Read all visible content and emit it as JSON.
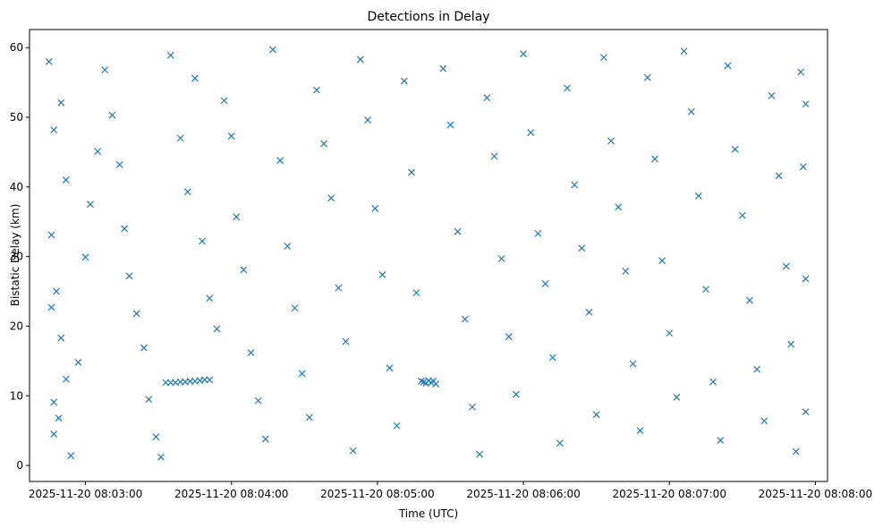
{
  "chart_data": {
    "type": "scatter",
    "title": "Detections in Delay",
    "xlabel": "Time (UTC)",
    "ylabel": "Bistatic Delay (km)",
    "x_ticks": [
      "2025-11-20 08:03:00",
      "2025-11-20 08:04:00",
      "2025-11-20 08:05:00",
      "2025-11-20 08:06:00",
      "2025-11-20 08:07:00",
      "2025-11-20 08:08:00"
    ],
    "y_ticks": [
      "0",
      "10",
      "20",
      "30",
      "40",
      "50",
      "60"
    ],
    "xlim": [
      "2025-11-20 08:02:37",
      "2025-11-20 08:08:05"
    ],
    "ylim": [
      -2.3,
      62.6
    ],
    "marker": "x",
    "grid": false,
    "series": [
      {
        "color": "#1f77b4",
        "points": [
          [
            "2025-11-20 08:02:45",
            58.0
          ],
          [
            "2025-11-20 08:02:47",
            48.2
          ],
          [
            "2025-11-20 08:02:50",
            52.1
          ],
          [
            "2025-11-20 08:02:52",
            41.0
          ],
          [
            "2025-11-20 08:02:46",
            33.1
          ],
          [
            "2025-11-20 08:02:48",
            25.0
          ],
          [
            "2025-11-20 08:02:46",
            22.7
          ],
          [
            "2025-11-20 08:02:50",
            18.3
          ],
          [
            "2025-11-20 08:02:52",
            12.4
          ],
          [
            "2025-11-20 08:02:47",
            9.1
          ],
          [
            "2025-11-20 08:02:49",
            6.8
          ],
          [
            "2025-11-20 08:02:47",
            4.5
          ],
          [
            "2025-11-20 08:02:54",
            1.4
          ],
          [
            "2025-11-20 08:02:57",
            14.8
          ],
          [
            "2025-11-20 08:03:00",
            29.9
          ],
          [
            "2025-11-20 08:03:02",
            37.5
          ],
          [
            "2025-11-20 08:03:05",
            45.1
          ],
          [
            "2025-11-20 08:03:08",
            56.8
          ],
          [
            "2025-11-20 08:03:11",
            50.3
          ],
          [
            "2025-11-20 08:03:14",
            43.2
          ],
          [
            "2025-11-20 08:03:16",
            34.0
          ],
          [
            "2025-11-20 08:03:18",
            27.2
          ],
          [
            "2025-11-20 08:03:21",
            21.8
          ],
          [
            "2025-11-20 08:03:24",
            16.9
          ],
          [
            "2025-11-20 08:03:26",
            9.5
          ],
          [
            "2025-11-20 08:03:29",
            4.1
          ],
          [
            "2025-11-20 08:03:31",
            1.2
          ],
          [
            "2025-11-20 08:03:33",
            11.9
          ],
          [
            "2025-11-20 08:03:35",
            11.9
          ],
          [
            "2025-11-20 08:03:37",
            11.9
          ],
          [
            "2025-11-20 08:03:39",
            12.0
          ],
          [
            "2025-11-20 08:03:41",
            12.0
          ],
          [
            "2025-11-20 08:03:43",
            12.1
          ],
          [
            "2025-11-20 08:03:45",
            12.1
          ],
          [
            "2025-11-20 08:03:47",
            12.2
          ],
          [
            "2025-11-20 08:03:49",
            12.3
          ],
          [
            "2025-11-20 08:03:51",
            12.3
          ],
          [
            "2025-11-20 08:03:35",
            58.9
          ],
          [
            "2025-11-20 08:03:39",
            47.0
          ],
          [
            "2025-11-20 08:03:42",
            39.3
          ],
          [
            "2025-11-20 08:03:45",
            55.6
          ],
          [
            "2025-11-20 08:03:48",
            32.2
          ],
          [
            "2025-11-20 08:03:51",
            24.0
          ],
          [
            "2025-11-20 08:03:54",
            19.6
          ],
          [
            "2025-11-20 08:03:57",
            52.4
          ],
          [
            "2025-11-20 08:04:00",
            47.3
          ],
          [
            "2025-11-20 08:04:02",
            35.7
          ],
          [
            "2025-11-20 08:04:05",
            28.1
          ],
          [
            "2025-11-20 08:04:08",
            16.2
          ],
          [
            "2025-11-20 08:04:11",
            9.3
          ],
          [
            "2025-11-20 08:04:14",
            3.8
          ],
          [
            "2025-11-20 08:04:17",
            59.7
          ],
          [
            "2025-11-20 08:04:20",
            43.8
          ],
          [
            "2025-11-20 08:04:23",
            31.5
          ],
          [
            "2025-11-20 08:04:26",
            22.6
          ],
          [
            "2025-11-20 08:04:29",
            13.2
          ],
          [
            "2025-11-20 08:04:32",
            6.9
          ],
          [
            "2025-11-20 08:04:35",
            53.9
          ],
          [
            "2025-11-20 08:04:38",
            46.2
          ],
          [
            "2025-11-20 08:04:41",
            38.4
          ],
          [
            "2025-11-20 08:04:44",
            25.5
          ],
          [
            "2025-11-20 08:04:47",
            17.8
          ],
          [
            "2025-11-20 08:04:50",
            2.1
          ],
          [
            "2025-11-20 08:04:53",
            58.3
          ],
          [
            "2025-11-20 08:04:56",
            49.6
          ],
          [
            "2025-11-20 08:04:59",
            36.9
          ],
          [
            "2025-11-20 08:05:02",
            27.4
          ],
          [
            "2025-11-20 08:05:05",
            14.0
          ],
          [
            "2025-11-20 08:05:08",
            5.7
          ],
          [
            "2025-11-20 08:05:11",
            55.2
          ],
          [
            "2025-11-20 08:05:14",
            42.1
          ],
          [
            "2025-11-20 08:05:16",
            24.8
          ],
          [
            "2025-11-20 08:05:18",
            12.1
          ],
          [
            "2025-11-20 08:05:19",
            12.0
          ],
          [
            "2025-11-20 08:05:20",
            11.8
          ],
          [
            "2025-11-20 08:05:21",
            12.2
          ],
          [
            "2025-11-20 08:05:22",
            11.9
          ],
          [
            "2025-11-20 08:05:23",
            12.1
          ],
          [
            "2025-11-20 08:05:24",
            11.7
          ],
          [
            "2025-11-20 08:05:27",
            57.0
          ],
          [
            "2025-11-20 08:05:30",
            48.9
          ],
          [
            "2025-11-20 08:05:33",
            33.6
          ],
          [
            "2025-11-20 08:05:36",
            21.0
          ],
          [
            "2025-11-20 08:05:39",
            8.4
          ],
          [
            "2025-11-20 08:05:42",
            1.6
          ],
          [
            "2025-11-20 08:05:45",
            52.8
          ],
          [
            "2025-11-20 08:05:48",
            44.4
          ],
          [
            "2025-11-20 08:05:51",
            29.7
          ],
          [
            "2025-11-20 08:05:54",
            18.5
          ],
          [
            "2025-11-20 08:05:57",
            10.2
          ],
          [
            "2025-11-20 08:06:00",
            59.1
          ],
          [
            "2025-11-20 08:06:03",
            47.8
          ],
          [
            "2025-11-20 08:06:06",
            33.3
          ],
          [
            "2025-11-20 08:06:09",
            26.1
          ],
          [
            "2025-11-20 08:06:12",
            15.5
          ],
          [
            "2025-11-20 08:06:15",
            3.2
          ],
          [
            "2025-11-20 08:06:18",
            54.2
          ],
          [
            "2025-11-20 08:06:21",
            40.3
          ],
          [
            "2025-11-20 08:06:24",
            31.2
          ],
          [
            "2025-11-20 08:06:27",
            22.0
          ],
          [
            "2025-11-20 08:06:30",
            7.3
          ],
          [
            "2025-11-20 08:06:33",
            58.6
          ],
          [
            "2025-11-20 08:06:36",
            46.6
          ],
          [
            "2025-11-20 08:06:39",
            37.1
          ],
          [
            "2025-11-20 08:06:42",
            27.9
          ],
          [
            "2025-11-20 08:06:45",
            14.6
          ],
          [
            "2025-11-20 08:06:48",
            5.0
          ],
          [
            "2025-11-20 08:06:51",
            55.7
          ],
          [
            "2025-11-20 08:06:54",
            44.0
          ],
          [
            "2025-11-20 08:06:57",
            29.4
          ],
          [
            "2025-11-20 08:07:00",
            19.0
          ],
          [
            "2025-11-20 08:07:03",
            9.8
          ],
          [
            "2025-11-20 08:07:06",
            59.5
          ],
          [
            "2025-11-20 08:07:09",
            50.8
          ],
          [
            "2025-11-20 08:07:12",
            38.7
          ],
          [
            "2025-11-20 08:07:15",
            25.3
          ],
          [
            "2025-11-20 08:07:18",
            12.0
          ],
          [
            "2025-11-20 08:07:21",
            3.6
          ],
          [
            "2025-11-20 08:07:24",
            57.4
          ],
          [
            "2025-11-20 08:07:27",
            45.4
          ],
          [
            "2025-11-20 08:07:30",
            35.9
          ],
          [
            "2025-11-20 08:07:33",
            23.7
          ],
          [
            "2025-11-20 08:07:36",
            13.8
          ],
          [
            "2025-11-20 08:07:39",
            6.4
          ],
          [
            "2025-11-20 08:07:42",
            53.1
          ],
          [
            "2025-11-20 08:07:45",
            41.6
          ],
          [
            "2025-11-20 08:07:48",
            28.6
          ],
          [
            "2025-11-20 08:07:50",
            17.4
          ],
          [
            "2025-11-20 08:07:52",
            2.0
          ],
          [
            "2025-11-20 08:07:54",
            56.5
          ],
          [
            "2025-11-20 08:07:55",
            42.9
          ],
          [
            "2025-11-20 08:07:56",
            26.8
          ],
          [
            "2025-11-20 08:07:56",
            7.7
          ],
          [
            "2025-11-20 08:07:56",
            51.9
          ]
        ]
      }
    ]
  }
}
